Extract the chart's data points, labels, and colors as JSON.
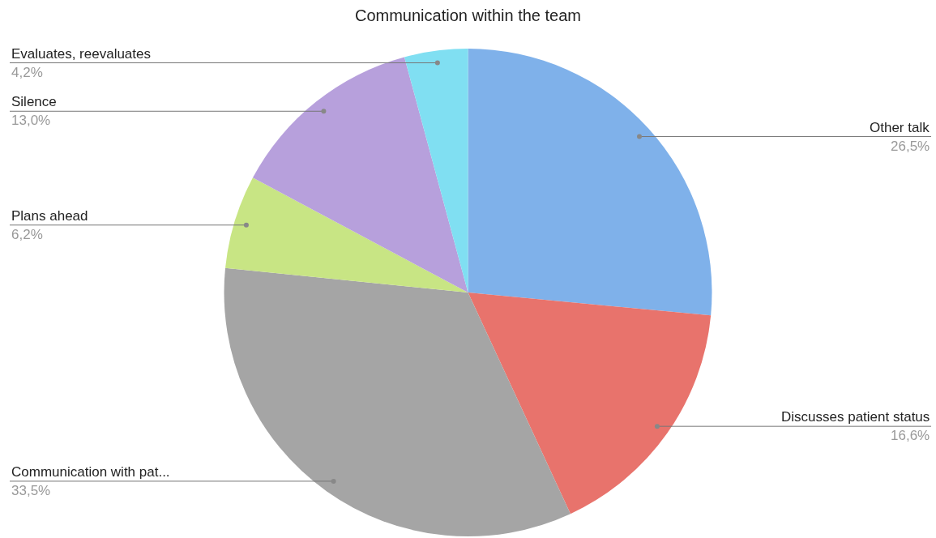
{
  "chart_data": {
    "type": "pie",
    "title": "Communication within the team",
    "categories": [
      "Other talk",
      "Discusses patient status",
      "Communication with pat...",
      "Plans ahead",
      "Silence",
      "Evaluates, reevaluates"
    ],
    "values": [
      26.5,
      16.6,
      33.5,
      6.2,
      13.0,
      4.2
    ],
    "colors": [
      "#7fb1ea",
      "#e8736c",
      "#a5a5a5",
      "#c8e584",
      "#b7a0dc",
      "#80dff2"
    ],
    "value_labels": [
      "26,5%",
      "16,6%",
      "33,5%",
      "6,2%",
      "13,0%",
      "4,2%"
    ]
  }
}
